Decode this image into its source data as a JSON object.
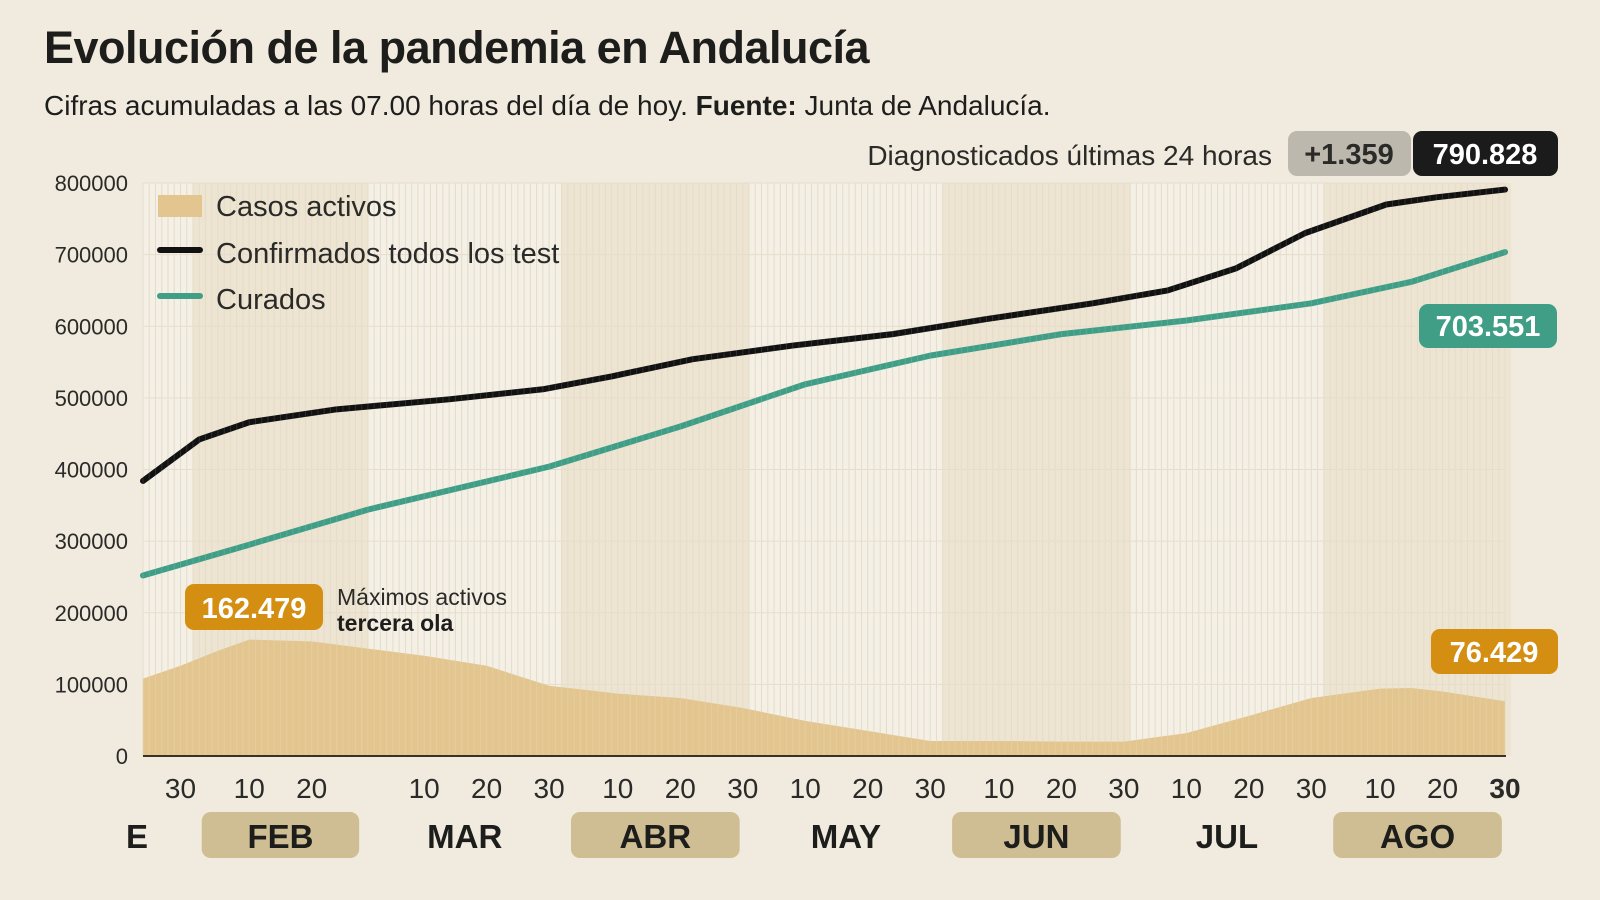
{
  "title": "Evolución de la pandemia en Andalucía",
  "subtitle": {
    "text": "Cifras acumuladas a las 07.00 horas del día de hoy. ",
    "source_label": "Fuente:",
    "source": " Junta de Andalucía."
  },
  "colors": {
    "background": "#f1ebdf",
    "activos": "#e3c68f",
    "confirmados": "#111111",
    "curados": "#3f9e85",
    "activos_badge": "#d48f12",
    "delta_badge": "#bdb8ad",
    "month_pill": "#cfbe93"
  },
  "chart_data": {
    "type": "line",
    "ylim": [
      0,
      800000
    ],
    "yticks": [
      "0",
      "100000",
      "200000",
      "300000",
      "400000",
      "500000",
      "600000",
      "700000",
      "800000"
    ],
    "xrange": [
      "01-24",
      "08-30"
    ],
    "grid": true,
    "legend_placement": "top-left",
    "legend": [
      "Casos activos",
      "Confirmados todos los test",
      "Curados"
    ],
    "xticks": [
      {
        "date": "01-30",
        "label": "30"
      },
      {
        "date": "02-10",
        "label": "10"
      },
      {
        "date": "02-20",
        "label": "20"
      },
      {
        "date": "03-10",
        "label": "10"
      },
      {
        "date": "03-20",
        "label": "20"
      },
      {
        "date": "03-30",
        "label": "30"
      },
      {
        "date": "04-10",
        "label": "10"
      },
      {
        "date": "04-20",
        "label": "20"
      },
      {
        "date": "04-30",
        "label": "30"
      },
      {
        "date": "05-10",
        "label": "10"
      },
      {
        "date": "05-20",
        "label": "20"
      },
      {
        "date": "05-30",
        "label": "30"
      },
      {
        "date": "06-10",
        "label": "10"
      },
      {
        "date": "06-20",
        "label": "20"
      },
      {
        "date": "06-30",
        "label": "30"
      },
      {
        "date": "07-10",
        "label": "10"
      },
      {
        "date": "07-20",
        "label": "20"
      },
      {
        "date": "07-30",
        "label": "30"
      },
      {
        "date": "08-10",
        "label": "10"
      },
      {
        "date": "08-20",
        "label": "20"
      },
      {
        "date": "08-30",
        "label": "30",
        "bold": true
      }
    ],
    "months": [
      {
        "label": "E",
        "start": "01-24",
        "end": "02-01",
        "shaded": false
      },
      {
        "label": "FEB",
        "start": "02-01",
        "end": "03-01",
        "shaded": true
      },
      {
        "label": "MAR",
        "start": "03-01",
        "end": "04-01",
        "shaded": false
      },
      {
        "label": "ABR",
        "start": "04-01",
        "end": "05-01",
        "shaded": true
      },
      {
        "label": "MAY",
        "start": "05-01",
        "end": "06-01",
        "shaded": false
      },
      {
        "label": "JUN",
        "start": "06-01",
        "end": "07-01",
        "shaded": true
      },
      {
        "label": "JUL",
        "start": "07-01",
        "end": "08-01",
        "shaded": false
      },
      {
        "label": "AGO",
        "start": "08-01",
        "end": "08-31",
        "shaded": true
      }
    ],
    "series": [
      {
        "name": "Casos activos",
        "kind": "area",
        "x": [
          "01-24",
          "01-30",
          "02-05",
          "02-10",
          "02-20",
          "03-01",
          "03-10",
          "03-20",
          "03-30",
          "04-10",
          "04-20",
          "04-30",
          "05-10",
          "05-20",
          "05-30",
          "06-10",
          "06-20",
          "06-30",
          "07-10",
          "07-20",
          "07-30",
          "08-10",
          "08-15",
          "08-20",
          "08-30"
        ],
        "y": [
          108000,
          126000,
          147000,
          162479,
          160000,
          150000,
          140000,
          126000,
          98000,
          87000,
          81000,
          67000,
          49000,
          35000,
          21000,
          21000,
          20000,
          20000,
          32000,
          56000,
          81000,
          94000,
          95000,
          90000,
          76429
        ]
      },
      {
        "name": "Confirmados todos los test",
        "kind": "line",
        "x": [
          "01-24",
          "02-02",
          "02-10",
          "02-24",
          "03-14",
          "03-29",
          "04-09",
          "04-22",
          "05-08",
          "05-24",
          "06-08",
          "06-25",
          "07-07",
          "07-18",
          "07-29",
          "08-11",
          "08-19",
          "08-30"
        ],
        "y": [
          384000,
          442000,
          466000,
          484000,
          498000,
          512000,
          530000,
          554000,
          573000,
          589000,
          610000,
          632000,
          650000,
          681000,
          730000,
          770000,
          780000,
          790828
        ]
      },
      {
        "name": "Curados",
        "kind": "line",
        "x": [
          "01-24",
          "02-10",
          "03-01",
          "03-30",
          "04-20",
          "05-10",
          "05-30",
          "06-20",
          "07-10",
          "07-30",
          "08-15",
          "08-30"
        ],
        "y": [
          252000,
          295000,
          344000,
          404000,
          460000,
          519000,
          559000,
          589000,
          608000,
          632000,
          662000,
          703551
        ]
      }
    ],
    "annotations": {
      "max_activos": {
        "value": "162.479",
        "line1": "Máximos activos",
        "line2": "tercera ola"
      },
      "last_activos": "76.429",
      "last_curados": "703.551",
      "last_confirmados": "790.828",
      "delta_label": "Diagnosticados últimas 24 horas",
      "delta_value": "+1.359"
    }
  }
}
